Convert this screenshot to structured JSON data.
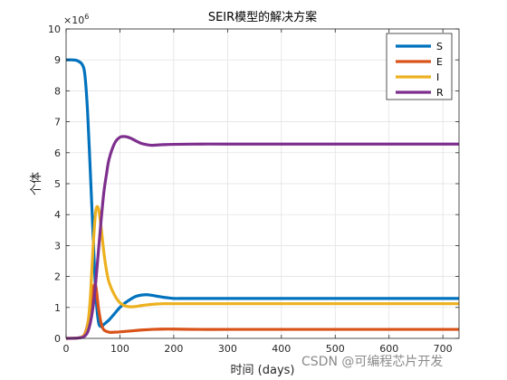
{
  "chart_data": {
    "type": "line",
    "title": "SEIR模型的解决方案",
    "xlabel": "时间 (days)",
    "ylabel": "个体",
    "y_multiplier_label": "×10",
    "y_multiplier_exponent": "6",
    "xlim": [
      0,
      730
    ],
    "ylim": [
      0,
      10
    ],
    "xticks": [
      0,
      100,
      200,
      300,
      400,
      500,
      600,
      700
    ],
    "yticks": [
      0,
      1,
      2,
      3,
      4,
      5,
      6,
      7,
      8,
      9,
      10
    ],
    "grid": true,
    "legend_position": "top-right",
    "series": [
      {
        "name": "S",
        "color": "#0072BD",
        "x": [
          0,
          10,
          20,
          30,
          35,
          40,
          45,
          50,
          55,
          60,
          65,
          70,
          80,
          90,
          100,
          110,
          120,
          130,
          140,
          150,
          160,
          170,
          180,
          190,
          200,
          220,
          250,
          300,
          400,
          500,
          600,
          730
        ],
        "y": [
          9,
          9,
          8.98,
          8.85,
          8.5,
          7.3,
          5.4,
          3.4,
          1.5,
          0.55,
          0.38,
          0.45,
          0.6,
          0.8,
          1.0,
          1.15,
          1.27,
          1.36,
          1.4,
          1.41,
          1.39,
          1.36,
          1.33,
          1.31,
          1.29,
          1.29,
          1.29,
          1.29,
          1.29,
          1.29,
          1.29,
          1.29
        ]
      },
      {
        "name": "E",
        "color": "#D95319",
        "x": [
          0,
          20,
          30,
          35,
          40,
          45,
          50,
          55,
          60,
          65,
          70,
          80,
          90,
          100,
          120,
          140,
          160,
          180,
          200,
          250,
          300,
          400,
          500,
          600,
          730
        ],
        "y": [
          0,
          0.01,
          0.05,
          0.15,
          0.45,
          1.0,
          1.6,
          1.7,
          1.0,
          0.5,
          0.28,
          0.2,
          0.2,
          0.21,
          0.24,
          0.27,
          0.29,
          0.3,
          0.3,
          0.29,
          0.29,
          0.29,
          0.29,
          0.29,
          0.29
        ]
      },
      {
        "name": "I",
        "color": "#EDB120",
        "x": [
          0,
          20,
          30,
          35,
          40,
          45,
          50,
          55,
          60,
          65,
          70,
          75,
          80,
          90,
          100,
          110,
          120,
          130,
          140,
          160,
          180,
          200,
          250,
          300,
          400,
          500,
          600,
          730
        ],
        "y": [
          0,
          0.01,
          0.05,
          0.12,
          0.4,
          1.3,
          2.9,
          4.1,
          4.2,
          3.6,
          2.8,
          2.2,
          1.8,
          1.4,
          1.15,
          1.05,
          1.02,
          1.03,
          1.06,
          1.1,
          1.12,
          1.12,
          1.12,
          1.12,
          1.12,
          1.12,
          1.12,
          1.12
        ]
      },
      {
        "name": "R",
        "color": "#7E2F8E",
        "x": [
          0,
          20,
          30,
          35,
          40,
          45,
          50,
          55,
          60,
          65,
          70,
          75,
          80,
          90,
          100,
          110,
          120,
          130,
          140,
          150,
          160,
          170,
          180,
          200,
          250,
          300,
          400,
          500,
          600,
          730
        ],
        "y": [
          0,
          0.01,
          0.03,
          0.08,
          0.2,
          0.5,
          1.0,
          1.8,
          2.8,
          3.8,
          4.7,
          5.3,
          5.8,
          6.3,
          6.5,
          6.52,
          6.47,
          6.38,
          6.3,
          6.26,
          6.24,
          6.25,
          6.26,
          6.27,
          6.28,
          6.28,
          6.28,
          6.28,
          6.28,
          6.28
        ]
      }
    ]
  },
  "watermark": "CSDN @可编程芯片开发"
}
